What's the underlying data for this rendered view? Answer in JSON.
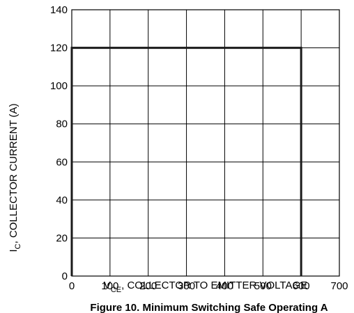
{
  "chart_data": {
    "type": "line",
    "title": "Figure 10. Minimum Switching Safe Operating A",
    "x_label": {
      "main": "V",
      "sub": "CE",
      "rest": ", COLLECTOR TO EMITTER VOLTAGE"
    },
    "y_label": {
      "main": "I",
      "sub": "C",
      "rest": ", COLLECTOR  CURRENT (A)"
    },
    "series": [
      {
        "color": "#1a1a1a",
        "x": [
          0,
          0,
          600,
          600
        ],
        "values": [
          0,
          120,
          120,
          0
        ]
      }
    ],
    "xlim": [
      0,
      700
    ],
    "xticks": [
      0,
      100,
      200,
      300,
      400,
      500,
      600,
      700
    ],
    "ylim": [
      0,
      140
    ],
    "yticks": [
      0,
      20,
      40,
      60,
      80,
      100,
      120,
      140
    ],
    "grid": true
  }
}
